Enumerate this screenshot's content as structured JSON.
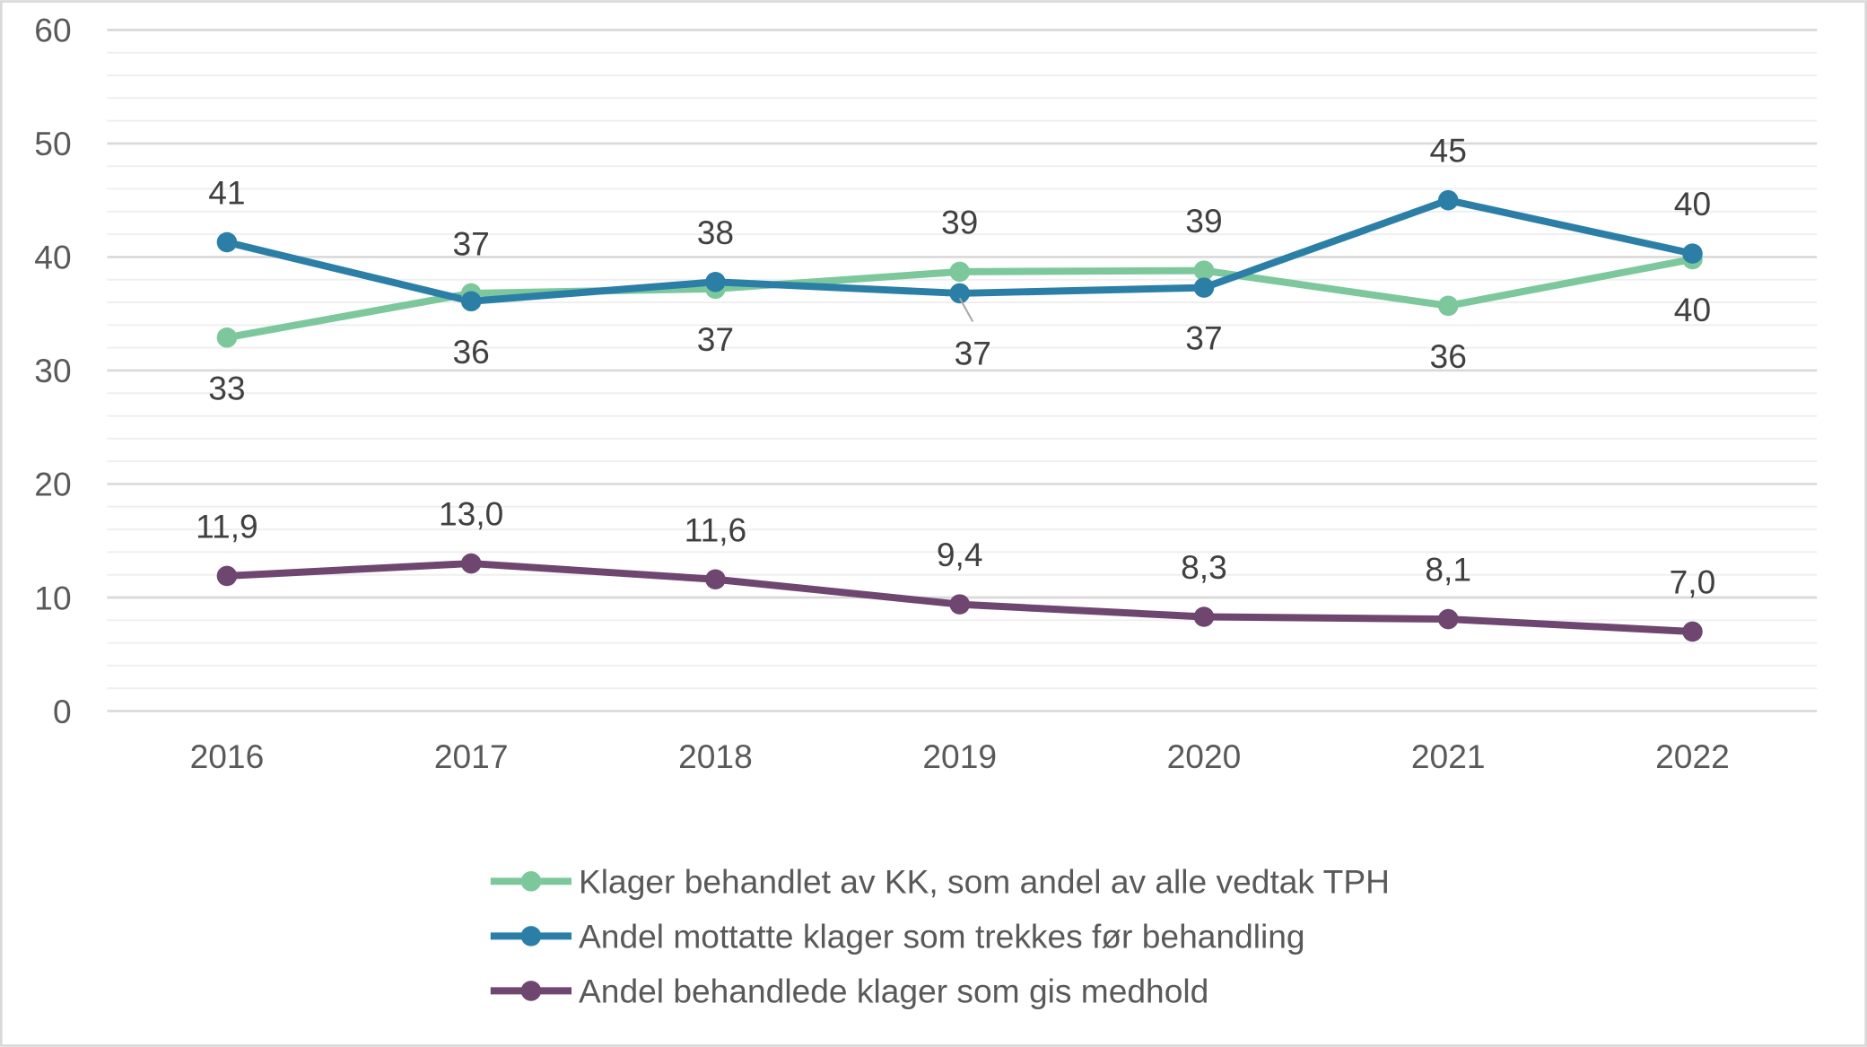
{
  "chart_data": {
    "type": "line",
    "title": "",
    "xlabel": "",
    "ylabel": "",
    "categories": [
      "2016",
      "2017",
      "2018",
      "2019",
      "2020",
      "2021",
      "2022"
    ],
    "ylim": [
      0,
      60
    ],
    "yticks": [
      "0",
      "10",
      "20",
      "30",
      "40",
      "50",
      "60"
    ],
    "grid": {
      "major": true,
      "minor": true,
      "minor_step": 2
    },
    "legend_position": "bottom",
    "series": [
      {
        "name": "Klager behandlet av KK, som andel av alle vedtak TPH",
        "color": "#7cc89c",
        "values": [
          32.9,
          36.8,
          37.2,
          38.7,
          38.8,
          35.7,
          39.8
        ],
        "labels": [
          "33",
          "37",
          "37",
          "39",
          "39",
          "36",
          "40"
        ]
      },
      {
        "name": "Andel mottatte klager som trekkes før behandling",
        "color": "#2b7fa6",
        "values": [
          41.3,
          36.1,
          37.8,
          36.8,
          37.3,
          45.0,
          40.3
        ],
        "labels": [
          "41",
          "36",
          "38",
          "37",
          "37",
          "45",
          "40"
        ]
      },
      {
        "name": "Andel behandlede klager som gis medhold",
        "color": "#6e4670",
        "values": [
          11.9,
          13.0,
          11.6,
          9.4,
          8.3,
          8.1,
          7.0
        ],
        "labels": [
          "11,9",
          "13,0",
          "11,6",
          "9,4",
          "8,3",
          "8,1",
          "7,0"
        ]
      }
    ]
  }
}
